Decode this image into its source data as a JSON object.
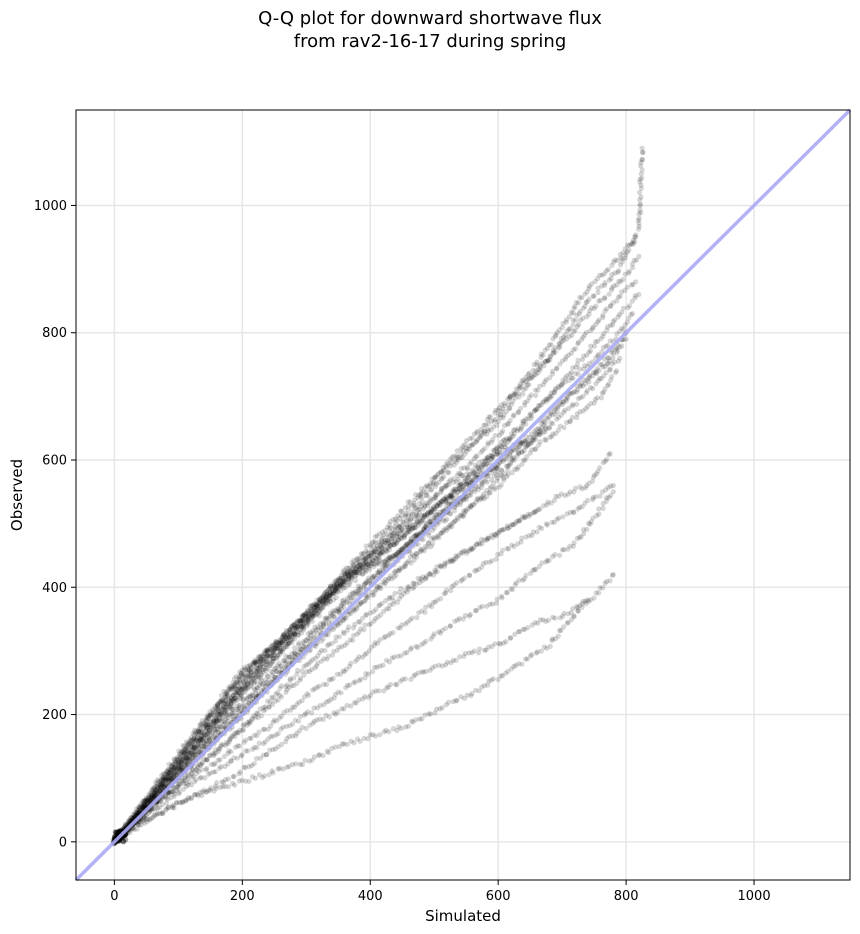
{
  "chart_data": {
    "type": "scatter",
    "title": [
      "Q-Q plot for downward shortwave flux",
      "from rav2-16-17 during spring"
    ],
    "xlabel": "Simulated",
    "ylabel": "Observed",
    "xlim": [
      -60,
      1150
    ],
    "ylim": [
      -60,
      1150
    ],
    "xticks": [
      0,
      200,
      400,
      600,
      800,
      1000
    ],
    "yticks": [
      0,
      200,
      400,
      600,
      800,
      1000
    ],
    "grid": true,
    "reference_line": {
      "x": [
        -60,
        1150
      ],
      "y": [
        -60,
        1150
      ],
      "color": "#aaaaf5"
    },
    "point_color": "#000000",
    "point_alpha": 0.16,
    "series": [
      {
        "x": [
          0,
          60,
          120,
          200,
          280,
          360,
          440,
          520,
          600,
          680,
          740,
          790,
          820,
          825
        ],
        "y": [
          0,
          70,
          140,
          240,
          320,
          410,
          490,
          580,
          670,
          780,
          870,
          920,
          960,
          1090
        ]
      },
      {
        "x": [
          0,
          60,
          120,
          200,
          280,
          360,
          440,
          520,
          600,
          680,
          740,
          790,
          815
        ],
        "y": [
          0,
          75,
          150,
          250,
          330,
          420,
          500,
          590,
          660,
          760,
          850,
          900,
          950
        ]
      },
      {
        "x": [
          0,
          60,
          120,
          200,
          280,
          360,
          440,
          520,
          600,
          680,
          740,
          800,
          820
        ],
        "y": [
          0,
          72,
          145,
          245,
          335,
          425,
          510,
          595,
          680,
          760,
          830,
          890,
          920
        ]
      },
      {
        "x": [
          0,
          60,
          120,
          200,
          280,
          360,
          440,
          520,
          600,
          680,
          740,
          790,
          815
        ],
        "y": [
          0,
          68,
          135,
          230,
          320,
          410,
          480,
          560,
          640,
          730,
          800,
          860,
          880
        ]
      },
      {
        "x": [
          0,
          60,
          120,
          200,
          280,
          360,
          440,
          520,
          600,
          680,
          740,
          790,
          820
        ],
        "y": [
          0,
          65,
          130,
          220,
          300,
          380,
          450,
          530,
          610,
          700,
          770,
          830,
          860
        ]
      },
      {
        "x": [
          0,
          60,
          120,
          200,
          280,
          360,
          440,
          520,
          600,
          680,
          740,
          790,
          810
        ],
        "y": [
          0,
          70,
          140,
          235,
          320,
          400,
          470,
          540,
          620,
          700,
          750,
          800,
          830
        ]
      },
      {
        "x": [
          0,
          60,
          120,
          200,
          280,
          360,
          440,
          520,
          600,
          680,
          730,
          780,
          800
        ],
        "y": [
          0,
          62,
          125,
          205,
          285,
          370,
          440,
          510,
          590,
          670,
          720,
          770,
          800
        ]
      },
      {
        "x": [
          0,
          60,
          120,
          200,
          280,
          360,
          440,
          520,
          600,
          660,
          710,
          770,
          800
        ],
        "y": [
          0,
          60,
          120,
          200,
          280,
          350,
          420,
          490,
          570,
          640,
          700,
          750,
          790
        ]
      },
      {
        "x": [
          0,
          60,
          120,
          200,
          280,
          360,
          440,
          520,
          600,
          660,
          710,
          760,
          785
        ],
        "y": [
          0,
          60,
          122,
          205,
          285,
          355,
          425,
          495,
          560,
          620,
          660,
          700,
          740
        ]
      },
      {
        "x": [
          0,
          60,
          120,
          200,
          280,
          360,
          440,
          520,
          600,
          660,
          710,
          760,
          790
        ],
        "y": [
          0,
          64,
          130,
          215,
          295,
          375,
          450,
          520,
          580,
          635,
          680,
          725,
          760
        ]
      },
      {
        "x": [
          0,
          60,
          120,
          200,
          280,
          360,
          440,
          520,
          580,
          630,
          680
        ],
        "y": [
          0,
          75,
          150,
          250,
          340,
          410,
          470,
          540,
          580,
          620,
          650
        ]
      },
      {
        "x": [
          0,
          60,
          120,
          200,
          280,
          360,
          440,
          520,
          580,
          620
        ],
        "y": [
          0,
          70,
          142,
          240,
          330,
          415,
          490,
          560,
          600,
          635
        ]
      },
      {
        "x": [
          0,
          60,
          120,
          200,
          280,
          360,
          440,
          520,
          560,
          600,
          640
        ],
        "y": [
          0,
          75,
          155,
          260,
          340,
          420,
          480,
          540,
          580,
          610,
          630
        ]
      },
      {
        "x": [
          0,
          60,
          120,
          200,
          280,
          360,
          440,
          520,
          560,
          600
        ],
        "y": [
          0,
          78,
          158,
          262,
          330,
          410,
          470,
          540,
          570,
          590
        ]
      },
      {
        "x": [
          0,
          60,
          120,
          200,
          280,
          360,
          440,
          520,
          560
        ],
        "y": [
          0,
          82,
          165,
          270,
          330,
          410,
          450,
          520,
          560
        ]
      },
      {
        "x": [
          0,
          60,
          120,
          200,
          280,
          360,
          440,
          500,
          540
        ],
        "y": [
          0,
          80,
          160,
          265,
          340,
          420,
          450,
          510,
          540
        ]
      },
      {
        "x": [
          0,
          60,
          120,
          200,
          280,
          360,
          440,
          520,
          580,
          640,
          700,
          740,
          775
        ],
        "y": [
          0,
          55,
          108,
          180,
          260,
          330,
          390,
          440,
          475,
          510,
          545,
          560,
          610
        ]
      },
      {
        "x": [
          0,
          60,
          120,
          180,
          240,
          300,
          360,
          420,
          480,
          540,
          600,
          660
        ],
        "y": [
          0,
          55,
          108,
          160,
          210,
          265,
          310,
          360,
          410,
          450,
          485,
          520
        ]
      },
      {
        "x": [
          0,
          60,
          120,
          180,
          240,
          300,
          360,
          420,
          480,
          540,
          600,
          660,
          720,
          780
        ],
        "y": [
          0,
          55,
          100,
          140,
          180,
          230,
          270,
          320,
          360,
          410,
          450,
          490,
          520,
          560
        ]
      },
      {
        "x": [
          0,
          60,
          120,
          180,
          240,
          300,
          360,
          420,
          480,
          540,
          600,
          660,
          720,
          780
        ],
        "y": [
          0,
          48,
          90,
          125,
          160,
          200,
          240,
          280,
          310,
          350,
          380,
          430,
          470,
          550
        ]
      },
      {
        "x": [
          0,
          60,
          120,
          180,
          240,
          300,
          360,
          420,
          480,
          540,
          600,
          660,
          700,
          750,
          780
        ],
        "y": [
          0,
          38,
          70,
          100,
          140,
          180,
          210,
          240,
          265,
          290,
          310,
          345,
          355,
          385,
          420
        ]
      },
      {
        "x": [
          0,
          40,
          80,
          120,
          160,
          200,
          250,
          300,
          350,
          400,
          450,
          500,
          560,
          620,
          680,
          740
        ],
        "y": [
          0,
          28,
          52,
          70,
          82,
          95,
          110,
          125,
          150,
          165,
          180,
          205,
          235,
          270,
          310,
          380
        ]
      }
    ]
  }
}
